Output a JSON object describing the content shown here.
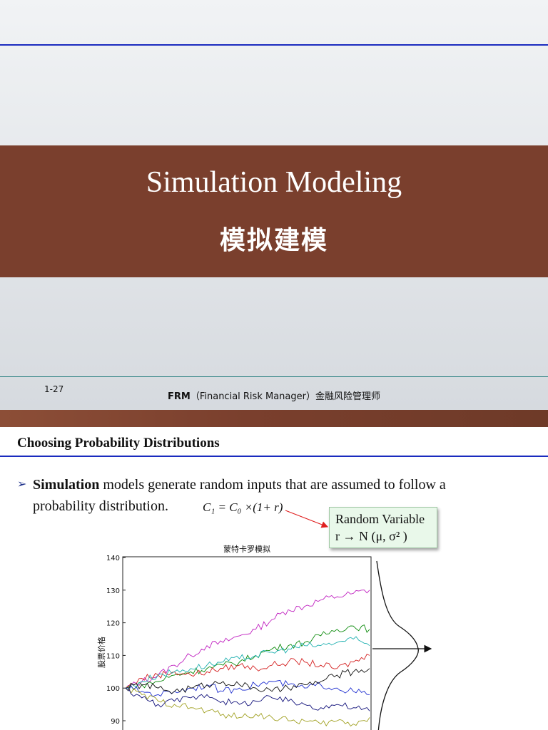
{
  "slide1": {
    "title": "Simulation Modeling",
    "subtitle": "模拟建模",
    "page_number": "1-27",
    "footer_bold": "FRM",
    "footer_rest": "（Financial Risk Manager）金融风险管理师"
  },
  "slide2": {
    "title": "Choosing Probability Distributions",
    "bullet_bold": "Simulation",
    "bullet_line1": " models generate random inputs that are assumed to follow a",
    "bullet_line2": "probability distribution.",
    "formula": "C₁ = C₀ ×(1+ r)",
    "callout_line1": "Random Variable",
    "callout_line2": "r → N (μ, σ² )"
  },
  "chart_data": {
    "type": "line",
    "title": "蒙特卡罗模拟",
    "ylabel": "股票价格",
    "xlabel": "",
    "ylim": [
      90,
      140
    ],
    "yticks": [
      90,
      100,
      110,
      120,
      130,
      140
    ],
    "series_colors": [
      "#c020c0",
      "#0a8a0a",
      "#d42020",
      "#1fb0b0",
      "#2030d0",
      "#101010",
      "#a0a020",
      "#10107a"
    ],
    "series": [
      {
        "values": [
          100,
          102,
          104,
          107,
          110,
          113,
          114,
          116,
          118,
          121,
          124,
          125,
          127,
          128,
          129,
          130
        ]
      },
      {
        "values": [
          100,
          101,
          102,
          104,
          105,
          106,
          107,
          108,
          110,
          112,
          113,
          114,
          116,
          118,
          119,
          118
        ]
      },
      {
        "values": [
          100,
          103,
          104,
          105,
          104,
          105,
          106,
          107,
          106,
          107,
          108,
          108,
          107,
          106,
          108,
          110
        ]
      },
      {
        "values": [
          100,
          102,
          104,
          105,
          106,
          107,
          108,
          109,
          110,
          111,
          112,
          113,
          113,
          114,
          115,
          113
        ]
      },
      {
        "values": [
          100,
          99,
          98,
          99,
          100,
          101,
          99,
          100,
          101,
          102,
          101,
          100,
          101,
          100,
          99,
          98
        ]
      },
      {
        "values": [
          100,
          101,
          100,
          99,
          100,
          101,
          102,
          101,
          100,
          99,
          100,
          101,
          102,
          104,
          105,
          106
        ]
      },
      {
        "values": [
          100,
          98,
          96,
          95,
          94,
          93,
          92,
          91,
          92,
          91,
          90,
          90,
          89,
          90,
          89,
          91
        ]
      },
      {
        "values": [
          100,
          97,
          95,
          96,
          97,
          98,
          96,
          95,
          96,
          97,
          96,
          95,
          94,
          95,
          94,
          93
        ]
      }
    ],
    "distribution_label": "Normal density curve"
  }
}
